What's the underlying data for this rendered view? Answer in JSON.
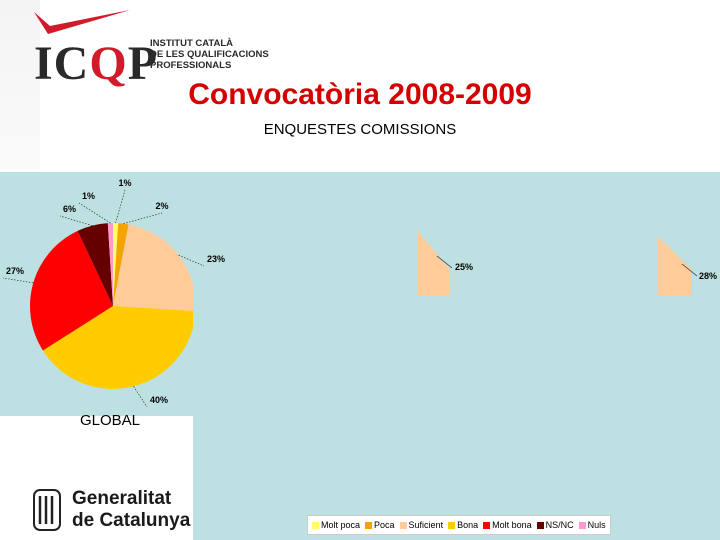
{
  "header": {
    "logo_letters": "ICQP",
    "logo_tagline": [
      "INSTITUT CATALÀ",
      "DE LES QUALIFICACIONS",
      "PROFESSIONALS"
    ],
    "title": "Convocatòria 2008-2009",
    "subtitle": "ENQUESTES COMISSIONS"
  },
  "footer": {
    "institution": [
      "Generalitat",
      "de Catalunya"
    ]
  },
  "colors": {
    "accent_red": "#d40000",
    "panel_bg": "#bde0e2"
  },
  "chart_data": [
    {
      "type": "pie",
      "title": "GLOBAL",
      "categories": [
        "Molt poca",
        "Poca",
        "Suficient",
        "Bona",
        "Molt bona",
        "NS/NC",
        "Nuls"
      ],
      "values": [
        1,
        2,
        23,
        40,
        27,
        6,
        1
      ],
      "labels": [
        "1%",
        "2%",
        "23%",
        "40%",
        "27%",
        "6%",
        "1%"
      ],
      "colors": [
        "#ffff66",
        "#f5a300",
        "#ffcc99",
        "#ffcc00",
        "#ff0000",
        "#660000",
        "#ff99cc"
      ],
      "legend_position": "bottom-right"
    },
    {
      "type": "pie",
      "title": "",
      "categories": [
        "Suficient"
      ],
      "values": [
        25
      ],
      "labels": [
        "25%"
      ],
      "colors": [
        "#ffcc99"
      ],
      "partially_visible": true
    },
    {
      "type": "pie",
      "title": "",
      "categories": [
        "Suficient"
      ],
      "values": [
        28
      ],
      "labels": [
        "28%"
      ],
      "colors": [
        "#ffcc99"
      ],
      "partially_visible": true
    }
  ],
  "legend": {
    "items": [
      {
        "label": "Molt poca",
        "color": "#ffff66"
      },
      {
        "label": "Poca",
        "color": "#f5a300"
      },
      {
        "label": "Suficient",
        "color": "#ffcc99"
      },
      {
        "label": "Bona",
        "color": "#ffcc00"
      },
      {
        "label": "Molt bona",
        "color": "#ff0000"
      },
      {
        "label": "NS/NC",
        "color": "#660000"
      },
      {
        "label": "Nuls",
        "color": "#ff99cc"
      }
    ]
  }
}
